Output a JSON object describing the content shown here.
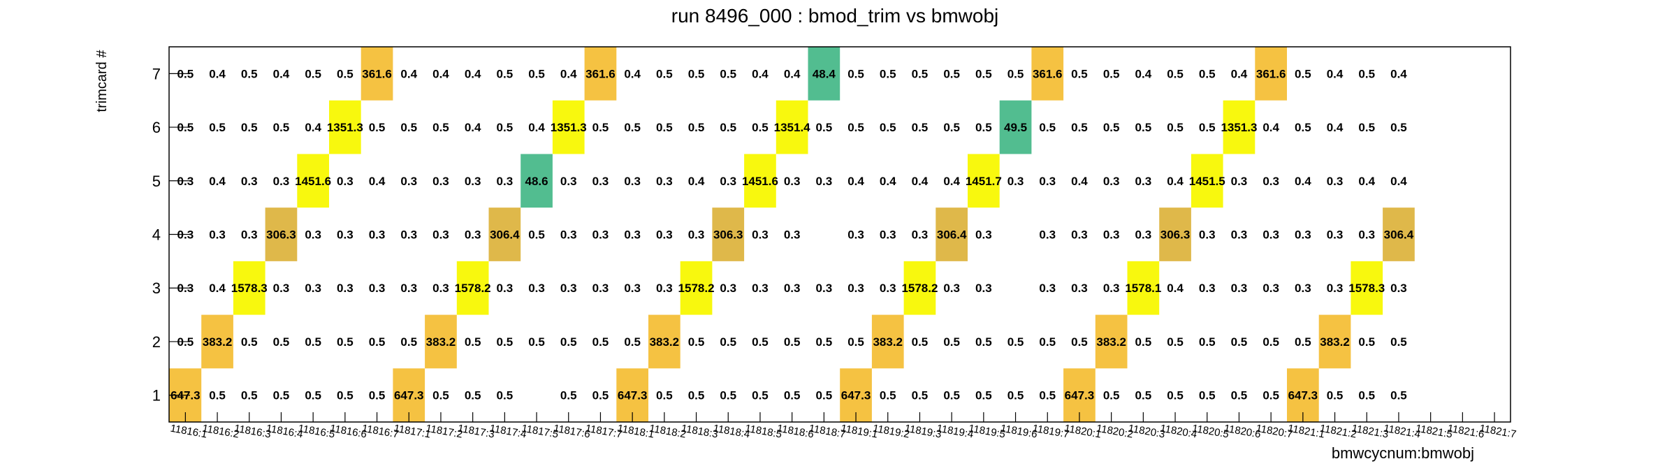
{
  "chart_data": {
    "type": "heatmap",
    "title": "run 8496_000 : bmod_trim vs bmwobj",
    "xlabel": "bmwcycnum:bmwobj",
    "ylabel": "trimcard #",
    "x_categories": [
      "11816:1",
      "11816:2",
      "11816:3",
      "11816:4",
      "11816:5",
      "11816:6",
      "11816:7",
      "11817:1",
      "11817:2",
      "11817:3",
      "11817:4",
      "11817:5",
      "11817:6",
      "11817:7",
      "11818:1",
      "11818:2",
      "11818:3",
      "11818:4",
      "11818:5",
      "11818:6",
      "11818:7",
      "11819:1",
      "11819:2",
      "11819:3",
      "11819:4",
      "11819:5",
      "11819:6",
      "11819:7",
      "11820:1",
      "11820:2",
      "11820:3",
      "11820:4",
      "11820:5",
      "11820:6",
      "11820:7",
      "11821:1",
      "11821:2",
      "11821:3",
      "11821:4",
      "11821:5",
      "11821:6",
      "11821:7"
    ],
    "y_categories": [
      "1",
      "2",
      "3",
      "4",
      "5",
      "6",
      "7"
    ],
    "grid": false,
    "colors": {
      "high": "#f5c242",
      "mid": "#dfb84a",
      "bright": "#f8f80e",
      "low": "#52bd90"
    },
    "rows": [
      [
        "647.3",
        "0.5",
        "0.5",
        "0.5",
        "0.5",
        "0.5",
        "0.5",
        "647.3",
        "0.5",
        "0.5",
        "0.5",
        "",
        "0.5",
        "0.5",
        "647.3",
        "0.5",
        "0.5",
        "0.5",
        "0.5",
        "0.5",
        "0.5",
        "647.3",
        "0.5",
        "0.5",
        "0.5",
        "0.5",
        "0.5",
        "0.5",
        "647.3",
        "0.5",
        "0.5",
        "0.5",
        "0.5",
        "0.5",
        "0.5",
        "647.3",
        "0.5",
        "0.5",
        "0.5",
        "",
        "",
        ""
      ],
      [
        "0.5",
        "383.2",
        "0.5",
        "0.5",
        "0.5",
        "0.5",
        "0.5",
        "0.5",
        "383.2",
        "0.5",
        "0.5",
        "0.5",
        "0.5",
        "0.5",
        "0.5",
        "383.2",
        "0.5",
        "0.5",
        "0.5",
        "0.5",
        "0.5",
        "0.5",
        "383.2",
        "0.5",
        "0.5",
        "0.5",
        "0.5",
        "0.5",
        "0.5",
        "383.2",
        "0.5",
        "0.5",
        "0.5",
        "0.5",
        "0.5",
        "0.5",
        "383.2",
        "0.5",
        "0.5",
        "",
        "",
        ""
      ],
      [
        "0.3",
        "0.4",
        "1578.3",
        "0.3",
        "0.3",
        "0.3",
        "0.3",
        "0.3",
        "0.3",
        "1578.2",
        "0.3",
        "0.3",
        "0.3",
        "0.3",
        "0.3",
        "0.3",
        "1578.2",
        "0.3",
        "0.3",
        "0.3",
        "0.3",
        "0.3",
        "0.3",
        "1578.2",
        "0.3",
        "0.3",
        "",
        "0.3",
        "0.3",
        "0.3",
        "1578.1",
        "0.4",
        "0.3",
        "0.3",
        "0.3",
        "0.3",
        "0.3",
        "1578.3",
        "0.3",
        "",
        "",
        ""
      ],
      [
        "0.3",
        "0.3",
        "0.3",
        "306.3",
        "0.3",
        "0.3",
        "0.3",
        "0.3",
        "0.3",
        "0.3",
        "306.4",
        "0.5",
        "0.3",
        "0.3",
        "0.3",
        "0.3",
        "0.3",
        "306.3",
        "0.3",
        "0.3",
        "",
        "0.3",
        "0.3",
        "0.3",
        "306.4",
        "0.3",
        "",
        "0.3",
        "0.3",
        "0.3",
        "0.3",
        "306.3",
        "0.3",
        "0.3",
        "0.3",
        "0.3",
        "0.3",
        "0.3",
        "306.4",
        "",
        "",
        ""
      ],
      [
        "0.3",
        "0.4",
        "0.3",
        "0.3",
        "1451.6",
        "0.3",
        "0.4",
        "0.3",
        "0.3",
        "0.3",
        "0.3",
        "48.6",
        "0.3",
        "0.3",
        "0.3",
        "0.3",
        "0.4",
        "0.3",
        "1451.6",
        "0.3",
        "0.3",
        "0.4",
        "0.4",
        "0.4",
        "0.4",
        "1451.7",
        "0.3",
        "0.3",
        "0.4",
        "0.3",
        "0.3",
        "0.4",
        "1451.5",
        "0.3",
        "0.3",
        "0.4",
        "0.3",
        "0.4",
        "0.4",
        "",
        "",
        ""
      ],
      [
        "0.5",
        "0.5",
        "0.5",
        "0.5",
        "0.4",
        "1351.3",
        "0.5",
        "0.5",
        "0.5",
        "0.4",
        "0.5",
        "0.4",
        "1351.3",
        "0.5",
        "0.5",
        "0.5",
        "0.5",
        "0.5",
        "0.5",
        "1351.4",
        "0.5",
        "0.5",
        "0.5",
        "0.5",
        "0.5",
        "0.5",
        "49.5",
        "0.5",
        "0.5",
        "0.5",
        "0.5",
        "0.5",
        "0.5",
        "1351.3",
        "0.4",
        "0.5",
        "0.4",
        "0.5",
        "0.5",
        "",
        "",
        ""
      ],
      [
        "0.5",
        "0.4",
        "0.5",
        "0.4",
        "0.5",
        "0.5",
        "361.6",
        "0.4",
        "0.4",
        "0.4",
        "0.5",
        "0.5",
        "0.4",
        "361.6",
        "0.4",
        "0.5",
        "0.5",
        "0.5",
        "0.4",
        "0.4",
        "48.4",
        "0.5",
        "0.5",
        "0.5",
        "0.5",
        "0.5",
        "0.5",
        "361.6",
        "0.5",
        "0.5",
        "0.4",
        "0.5",
        "0.5",
        "0.4",
        "361.6",
        "0.5",
        "0.4",
        "0.5",
        "0.4",
        "",
        "",
        ""
      ]
    ]
  }
}
